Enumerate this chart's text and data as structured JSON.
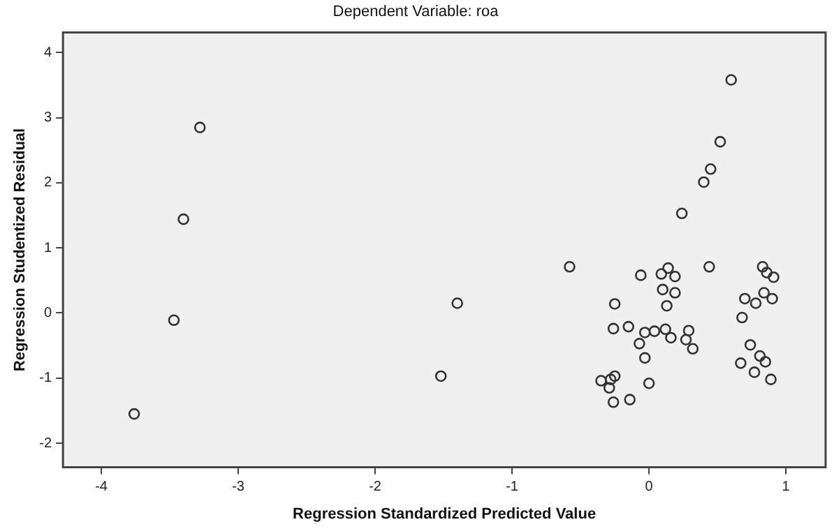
{
  "chart_data": {
    "type": "scatter",
    "title": "Dependent Variable: roa",
    "xlabel": "Regression Standardized Predicted Value",
    "ylabel": "Regression Studentized Residual",
    "xlim": [
      -4.28,
      1.29
    ],
    "ylim": [
      -2.37,
      4.31
    ],
    "xticks": [
      -4,
      -3,
      -2,
      -1,
      0,
      1
    ],
    "yticks": [
      -2,
      -1,
      0,
      1,
      2,
      3,
      4
    ],
    "grid": false,
    "legend": false,
    "marker": "circle",
    "series": [
      {
        "color": "#333333",
        "x": [
          -3.76,
          -3.47,
          -3.4,
          -3.28,
          -1.52,
          -1.4,
          -0.58,
          0.6,
          0.52,
          0.45,
          0.4,
          0.24,
          -0.06,
          0.09,
          0.14,
          0.19,
          0.44,
          0.1,
          0.19,
          0.13,
          -0.25,
          -0.26,
          -0.15,
          -0.03,
          -0.07,
          0.04,
          0.12,
          0.16,
          0.29,
          0.27,
          0.32,
          -0.03,
          -0.35,
          -0.28,
          -0.25,
          -0.29,
          -0.26,
          -0.14,
          0.0,
          0.83,
          0.91,
          0.86,
          0.7,
          0.78,
          0.84,
          0.9,
          0.68,
          0.74,
          0.81,
          0.85,
          0.67,
          0.77,
          0.89
        ],
        "values": [
          -1.55,
          -0.11,
          1.44,
          2.85,
          -0.97,
          0.15,
          0.71,
          3.58,
          2.63,
          2.21,
          2.01,
          1.53,
          0.58,
          0.6,
          0.69,
          0.56,
          0.71,
          0.36,
          0.31,
          0.11,
          0.14,
          -0.24,
          -0.21,
          -0.3,
          -0.47,
          -0.28,
          -0.25,
          -0.38,
          -0.27,
          -0.41,
          -0.55,
          -0.69,
          -1.04,
          -1.02,
          -0.97,
          -1.15,
          -1.37,
          -1.33,
          -1.08,
          0.71,
          0.55,
          0.62,
          0.22,
          0.15,
          0.31,
          0.22,
          -0.07,
          -0.49,
          -0.66,
          -0.75,
          -0.77,
          -0.91,
          -1.02
        ]
      }
    ]
  }
}
